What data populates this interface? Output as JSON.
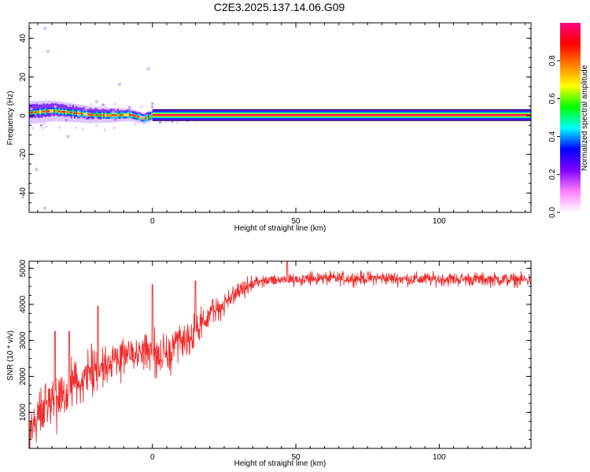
{
  "title": "C2E3.2025.137.14.06.G09",
  "chart_data": [
    {
      "type": "heatmap",
      "xlabel": "Height of straight line (km)",
      "ylabel": "Frequency (Hz)",
      "xlim": [
        -43,
        132
      ],
      "ylim": [
        -50,
        48
      ],
      "x_ticks": [
        0,
        50,
        100
      ],
      "x_tick_labels": [
        "0",
        "50",
        "100"
      ],
      "y_ticks": [
        -40,
        -20,
        0,
        20,
        40
      ],
      "y_tick_labels": [
        "-40",
        "-20",
        "0",
        "20",
        "40"
      ],
      "colorbar": {
        "label": "Normalized spectral amplitude",
        "range": [
          0,
          1
        ],
        "ticks": [
          0.0,
          0.2,
          0.4,
          0.6,
          0.8
        ],
        "tick_labels": [
          "0.0",
          "0.2",
          "0.4",
          "0.6",
          "0.8"
        ],
        "colors": [
          "#ffffff",
          "#ff80ff",
          "#8000ff",
          "#0000ff",
          "#00ffff",
          "#00ff00",
          "#ffff00",
          "#ff8000",
          "#ff0000",
          "#ff0080"
        ]
      },
      "ridge": {
        "description_points": [
          [
            -43,
            1.5
          ],
          [
            -35,
            2.5
          ],
          [
            -28,
            1.5
          ],
          [
            -22,
            0.5
          ],
          [
            -15,
            0.2
          ],
          [
            -8,
            0.5
          ],
          [
            -3,
            -1.5
          ],
          [
            0,
            0.3
          ],
          [
            132,
            0.2
          ]
        ],
        "stable_from_km": 0
      },
      "scatter_outliers": [
        [
          -38,
          46
        ],
        [
          -37,
          34
        ],
        [
          -12,
          17
        ],
        [
          -2,
          25
        ],
        [
          -41,
          -27
        ],
        [
          -38,
          -47
        ],
        [
          -30,
          -10
        ],
        [
          -20,
          8
        ]
      ]
    },
    {
      "type": "line",
      "xlabel": "Height of straight line (km)",
      "ylabel": "SNR (10 * v/v)",
      "xlim": [
        -43,
        132
      ],
      "ylim": [
        0,
        5200
      ],
      "x_ticks": [
        0,
        50,
        100
      ],
      "x_tick_labels": [
        "0",
        "50",
        "100"
      ],
      "y_ticks": [
        1000,
        2000,
        3000,
        4000,
        5000
      ],
      "y_tick_labels": [
        "1000",
        "2000",
        "3000",
        "4000",
        "5000"
      ],
      "series_color": "#ee2e2e",
      "envelope": {
        "x": [
          -43,
          -40,
          -36,
          -32,
          -28,
          -24,
          -20,
          -16,
          -12,
          -8,
          -4,
          0,
          4,
          8,
          12,
          16,
          20,
          24,
          28,
          32,
          36,
          40,
          45,
          50,
          60,
          70,
          80,
          90,
          100,
          110,
          120,
          132
        ],
        "mean": [
          500,
          900,
          1200,
          1400,
          1700,
          1800,
          2200,
          2300,
          2500,
          2600,
          2700,
          2700,
          2500,
          2800,
          3000,
          3300,
          3700,
          3950,
          4250,
          4450,
          4600,
          4650,
          4700,
          4700,
          4720,
          4720,
          4730,
          4700,
          4700,
          4700,
          4690,
          4680
        ],
        "spread": [
          600,
          700,
          800,
          800,
          800,
          700,
          700,
          700,
          600,
          600,
          600,
          700,
          600,
          600,
          550,
          500,
          450,
          400,
          300,
          250,
          220,
          200,
          200,
          200,
          200,
          200,
          200,
          200,
          200,
          200,
          200,
          200
        ]
      },
      "spikes": [
        [
          -34,
          3250
        ],
        [
          -29,
          3250
        ],
        [
          -19,
          3950
        ],
        [
          0,
          4550
        ],
        [
          15,
          4650
        ],
        [
          47,
          5250
        ]
      ]
    }
  ]
}
